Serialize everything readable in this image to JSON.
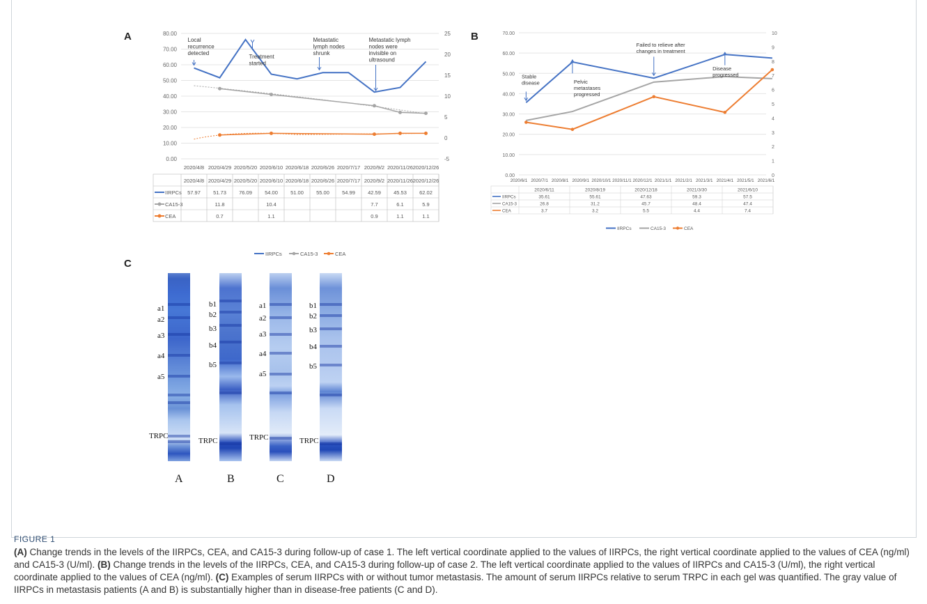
{
  "panels": {
    "a": "A",
    "b": "B",
    "c": "C"
  },
  "chart_a": {
    "type": "line",
    "y_left_ticks": [
      "80.00",
      "70.00",
      "60.00",
      "50.00",
      "40.00",
      "30.00",
      "20.00",
      "10.00",
      "0.00"
    ],
    "y_right_ticks": [
      "25",
      "20",
      "15",
      "10",
      "5",
      "0",
      "-5"
    ],
    "x_labels": [
      "2020/4/8",
      "2020/4/29",
      "2020/5/20",
      "2020/6/10",
      "2020/6/18",
      "2020/6/26",
      "2020/7/17",
      "2020/9/2",
      "2020/11/26",
      "2020/12/26"
    ],
    "table_rows": [
      {
        "name": "IIRPCs",
        "color": "#4472c4",
        "cells": [
          "57.97",
          "51.73",
          "76.09",
          "54.00",
          "51.00",
          "55.00",
          "54.99",
          "42.59",
          "45.53",
          "62.02"
        ]
      },
      {
        "name": "CA15-3",
        "color": "#a5a5a5",
        "cells": [
          "",
          "11.8",
          "",
          "10.4",
          "",
          "",
          "",
          "7.7",
          "6.1",
          "5.9"
        ]
      },
      {
        "name": "CEA",
        "color": "#ed7d31",
        "cells": [
          "",
          "0.7",
          "",
          "1.1",
          "",
          "",
          "",
          "0.9",
          "1.1",
          "1.1"
        ]
      }
    ],
    "annotations": [
      {
        "lines": [
          "Local",
          "recurrence",
          "detected"
        ]
      },
      {
        "lines": [
          "Treatment",
          "started"
        ]
      },
      {
        "lines": [
          "Metastatic",
          "lymph nodes",
          "shrunk"
        ]
      },
      {
        "lines": [
          "Metastatic lymph",
          "nodes were",
          "invisible on",
          "ultrasound"
        ]
      }
    ],
    "legend": [
      "IIRPCs",
      "CA15-3",
      "CEA"
    ],
    "series": [
      {
        "name": "IIRPCs",
        "axis": "left",
        "values": [
          57.97,
          51.73,
          76.09,
          54.0,
          51.0,
          55.0,
          54.99,
          42.59,
          45.53,
          62.02
        ]
      },
      {
        "name": "CA15-3",
        "axis": "right",
        "values": [
          null,
          11.8,
          null,
          10.4,
          null,
          null,
          null,
          7.7,
          6.1,
          5.9
        ]
      },
      {
        "name": "CEA",
        "axis": "right",
        "values": [
          null,
          0.7,
          null,
          1.1,
          null,
          null,
          null,
          0.9,
          1.1,
          1.1
        ]
      }
    ]
  },
  "chart_b": {
    "type": "line",
    "y_left_ticks": [
      "70.00",
      "60.00",
      "50.00",
      "40.00",
      "30.00",
      "20.00",
      "10.00",
      "0.00"
    ],
    "y_right_ticks": [
      "10",
      "9",
      "8",
      "7",
      "6",
      "5",
      "4",
      "3",
      "2",
      "1",
      "0"
    ],
    "x_labels": [
      "2020/6/1",
      "2020/7/1",
      "2020/8/1",
      "2020/9/1",
      "2020/10/1",
      "2020/11/1",
      "2020/12/1",
      "2021/1/1",
      "2021/2/1",
      "2021/3/1",
      "2021/4/1",
      "2021/5/1",
      "2021/6/1"
    ],
    "table_headers": [
      "2020/6/11",
      "2020/8/19",
      "2020/12/18",
      "2021/3/30",
      "2021/6/10"
    ],
    "table_rows": [
      {
        "name": "IIRPCs",
        "color": "#4472c4",
        "cells": [
          "35.61",
          "55.61",
          "47.63",
          "59.3",
          "57.5"
        ]
      },
      {
        "name": "CA15-3",
        "color": "#a5a5a5",
        "cells": [
          "26.8",
          "31.2",
          "45.7",
          "48.4",
          "47.4"
        ]
      },
      {
        "name": "CEA",
        "color": "#ed7d31",
        "cells": [
          "3.7",
          "3.2",
          "5.5",
          "4.4",
          "7.4"
        ]
      }
    ],
    "annotations": [
      {
        "lines": [
          "Stable",
          "disease"
        ]
      },
      {
        "lines": [
          "Pelvic",
          "metastases",
          "progressed"
        ]
      },
      {
        "lines": [
          "Failed to relieve after",
          "changes in treatment"
        ]
      },
      {
        "lines": [
          "Disease",
          "progressed"
        ]
      }
    ],
    "legend": [
      "IIRPCs",
      "CA15-3",
      "CEA"
    ],
    "series": [
      {
        "name": "IIRPCs",
        "axis": "left",
        "values": [
          35.61,
          55.61,
          47.63,
          59.3,
          57.5
        ]
      },
      {
        "name": "CA15-3",
        "axis": "left",
        "values": [
          26.8,
          31.2,
          45.7,
          48.4,
          47.4
        ]
      },
      {
        "name": "CEA",
        "axis": "right",
        "values": [
          3.7,
          3.2,
          5.5,
          4.4,
          7.4
        ]
      }
    ]
  },
  "gel": {
    "lanes": [
      "A",
      "B",
      "C",
      "D"
    ],
    "band_labels_a": [
      "a1",
      "a2",
      "a3",
      "a4",
      "a5"
    ],
    "band_labels_b": [
      "b1",
      "b2",
      "b3",
      "b4",
      "b5"
    ],
    "trpc": "TRPC"
  },
  "figure_label": "FIGURE 1",
  "caption": {
    "p1_tag": "(A)",
    "p1": " Change trends in the levels of the IIRPCs, CEA, and CA15-3 during follow-up of case 1. The left vertical coordinate applied to the values of IIRPCs, the right vertical coordinate applied to the values of CEA (ng/ml) and CA15-3 (U/ml). ",
    "p2_tag": "(B)",
    "p2": " Change trends in the levels of the IIRPCs, CEA, and CA15-3 during follow-up of case 2. The left vertical coordinate applied to the values of IIRPCs and CA15-3 (U/ml), the right vertical coordinate applied to the values of CEA (ng/ml). ",
    "p3_tag": "(C)",
    "p3": " Examples of serum IIRPCs with or without tumor metastasis. The amount of serum IIRPCs relative to serum TRPC in each gel was quantified. The gray value of IIRPCs in metastasis patients (A and B) is substantially higher than in disease-free patients (C and D)."
  }
}
